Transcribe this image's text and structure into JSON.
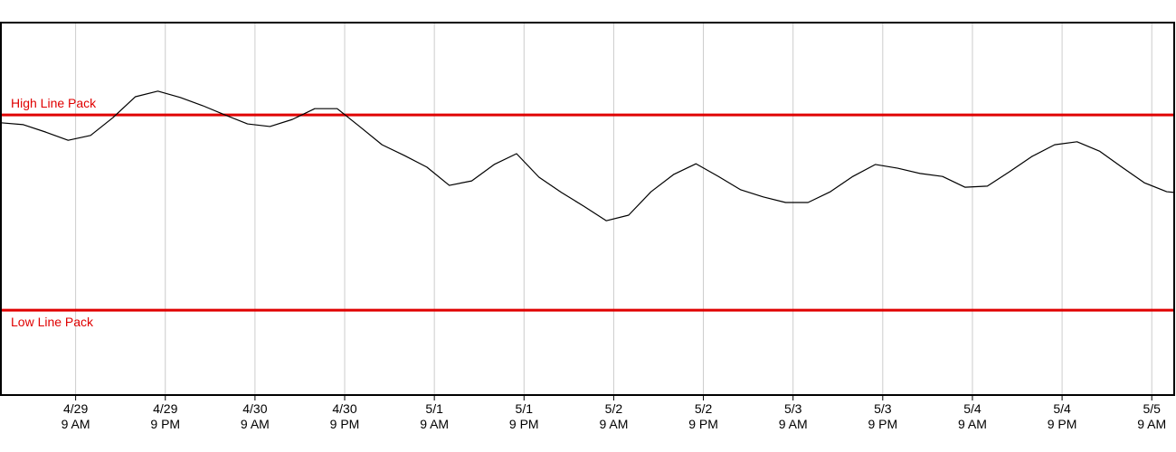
{
  "chart_data": {
    "type": "line",
    "x": [
      "4/28 11 PM",
      "4/29 2 AM",
      "4/29 5 AM",
      "4/29 8 AM",
      "4/29 11 AM",
      "4/29 2 PM",
      "4/29 5 PM",
      "4/29 8 PM",
      "4/29 11 PM",
      "4/30 2 AM",
      "4/30 5 AM",
      "4/30 8 AM",
      "4/30 11 AM",
      "4/30 2 PM",
      "4/30 5 PM",
      "4/30 8 PM",
      "4/30 11 PM",
      "5/1 2 AM",
      "5/1 5 AM",
      "5/1 8 AM",
      "5/1 11 AM",
      "5/1 2 PM",
      "5/1 5 PM",
      "5/1 8 PM",
      "5/1 11 PM",
      "5/2 2 AM",
      "5/2 5 AM",
      "5/2 8 AM",
      "5/2 11 AM",
      "5/2 2 PM",
      "5/2 5 PM",
      "5/2 8 PM",
      "5/2 11 PM",
      "5/3 2 AM",
      "5/3 5 AM",
      "5/3 8 AM",
      "5/3 11 AM",
      "5/3 2 PM",
      "5/3 5 PM",
      "5/3 8 PM",
      "5/3 11 PM",
      "5/4 2 AM",
      "5/4 5 AM",
      "5/4 8 AM",
      "5/4 11 AM",
      "5/4 2 PM",
      "5/4 5 PM",
      "5/4 8 PM",
      "5/4 11 PM",
      "5/5 2 AM",
      "5/5 5 AM",
      "5/5 8 AM",
      "5/5 11 AM",
      "5/5 12 PM"
    ],
    "series": [
      {
        "color": "#000000",
        "values": [
          73.1,
          72.6,
          70.6,
          68.4,
          69.7,
          74.5,
          80.1,
          81.6,
          79.9,
          77.7,
          75.2,
          72.8,
          72.1,
          74.0,
          76.9,
          76.9,
          72.1,
          67.2,
          64.3,
          61.2,
          56.3,
          57.5,
          61.9,
          64.8,
          58.5,
          54.4,
          50.7,
          46.8,
          48.3,
          54.6,
          59.2,
          62.1,
          58.7,
          55.1,
          53.2,
          51.7,
          51.7,
          54.6,
          58.7,
          61.9,
          60.9,
          59.5,
          58.7,
          55.8,
          56.1,
          60.0,
          64.1,
          67.2,
          68.0,
          65.5,
          61.2,
          57.0,
          54.6,
          54.4
        ]
      }
    ],
    "xlim": [
      "4/28 11 PM",
      "5/5 12 PM"
    ],
    "xticks": [
      {
        "value": "4/29 9 AM",
        "label": [
          "4/29",
          "9 AM"
        ]
      },
      {
        "value": "4/29 9 PM",
        "label": [
          "4/29",
          "9 PM"
        ]
      },
      {
        "value": "4/30 9 AM",
        "label": [
          "4/30",
          "9 AM"
        ]
      },
      {
        "value": "4/30 9 PM",
        "label": [
          "4/30",
          "9 PM"
        ]
      },
      {
        "value": "5/1 9 AM",
        "label": [
          "5/1",
          "9 AM"
        ]
      },
      {
        "value": "5/1 9 PM",
        "label": [
          "5/1",
          "9 PM"
        ]
      },
      {
        "value": "5/2 9 AM",
        "label": [
          "5/2",
          "9 AM"
        ]
      },
      {
        "value": "5/2 9 PM",
        "label": [
          "5/2",
          "9 PM"
        ]
      },
      {
        "value": "5/3 9 AM",
        "label": [
          "5/3",
          "9 AM"
        ]
      },
      {
        "value": "5/3 9 PM",
        "label": [
          "5/3",
          "9 PM"
        ]
      },
      {
        "value": "5/4 9 AM",
        "label": [
          "5/4",
          "9 AM"
        ]
      },
      {
        "value": "5/4 9 PM",
        "label": [
          "5/4",
          "9 PM"
        ]
      },
      {
        "value": "5/5 9 AM",
        "label": [
          "5/5",
          "9 AM"
        ]
      }
    ],
    "ylim": [
      0,
      100
    ],
    "grid": true,
    "reference_lines": [
      {
        "label": "High Line Pack",
        "value": 75.2,
        "color": "#e00000"
      },
      {
        "label": "Low Line Pack",
        "value": 22.8,
        "color": "#e00000"
      }
    ]
  }
}
